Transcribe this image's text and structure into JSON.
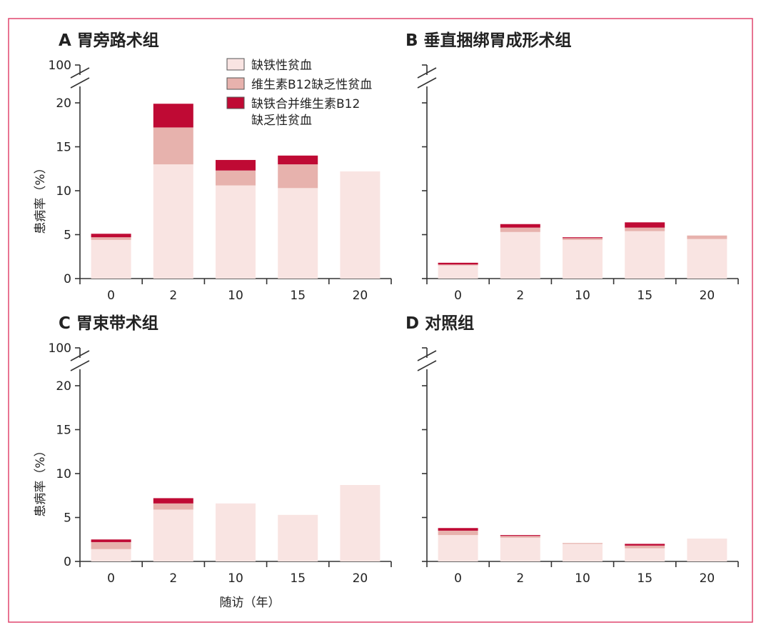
{
  "xlabel": "随访（年）",
  "legend": [
    {
      "label": "缺铁性贫血",
      "color": "#f9e4e2"
    },
    {
      "label": "维生素B12缺乏性贫血",
      "color": "#e7b2ad"
    },
    {
      "label": "缺铁合并维生素B12",
      "label2": "缺乏性贫血",
      "color": "#bf0a34"
    }
  ],
  "chart_data": [
    {
      "type": "bar",
      "stacked": true,
      "panel": "A",
      "title": "胃旁路术组",
      "ylabel": "患病率（%）",
      "categories": [
        "0",
        "2",
        "10",
        "15",
        "20"
      ],
      "yticks": [
        "0",
        "5",
        "10",
        "15",
        "20",
        "100"
      ],
      "y_axis_break": [
        20,
        100
      ],
      "series": [
        {
          "name": "缺铁性贫血",
          "values": [
            4.4,
            13.0,
            10.6,
            10.3,
            12.2
          ]
        },
        {
          "name": "维生素B12缺乏性贫血",
          "values": [
            0.3,
            4.2,
            1.7,
            2.7,
            0
          ]
        },
        {
          "name": "缺铁合并维生素B12缺乏性贫血",
          "values": [
            0.4,
            2.7,
            1.2,
            1.0,
            0
          ]
        }
      ]
    },
    {
      "type": "bar",
      "stacked": true,
      "panel": "B",
      "title": "垂直捆绑胃成形术组",
      "ylabel": "",
      "categories": [
        "0",
        "2",
        "10",
        "15",
        "20"
      ],
      "yticks": [],
      "y_axis_break": [
        20,
        100
      ],
      "series": [
        {
          "name": "缺铁性贫血",
          "values": [
            1.5,
            5.3,
            4.4,
            5.4,
            4.5
          ]
        },
        {
          "name": "维生素B12缺乏性贫血",
          "values": [
            0.1,
            0.5,
            0.2,
            0.4,
            0.4
          ]
        },
        {
          "name": "缺铁合并维生素B12缺乏性贫血",
          "values": [
            0.2,
            0.4,
            0.1,
            0.6,
            0
          ]
        }
      ]
    },
    {
      "type": "bar",
      "stacked": true,
      "panel": "C",
      "title": "胃束带术组",
      "ylabel": "患病率（%）",
      "categories": [
        "0",
        "2",
        "10",
        "15",
        "20"
      ],
      "yticks": [
        "0",
        "5",
        "10",
        "15",
        "20",
        "100"
      ],
      "y_axis_break": [
        20,
        100
      ],
      "series": [
        {
          "name": "缺铁性贫血",
          "values": [
            1.4,
            5.9,
            6.6,
            5.3,
            8.7
          ]
        },
        {
          "name": "维生素B12缺乏性贫血",
          "values": [
            0.8,
            0.7,
            0,
            0,
            0
          ]
        },
        {
          "name": "缺铁合并维生素B12缺乏性贫血",
          "values": [
            0.3,
            0.6,
            0,
            0,
            0
          ]
        }
      ]
    },
    {
      "type": "bar",
      "stacked": true,
      "panel": "D",
      "title": "对照组",
      "ylabel": "",
      "categories": [
        "0",
        "2",
        "10",
        "15",
        "20"
      ],
      "yticks": [],
      "y_axis_break": [
        20,
        100
      ],
      "series": [
        {
          "name": "缺铁性贫血",
          "values": [
            3.0,
            2.7,
            2.0,
            1.5,
            2.6
          ]
        },
        {
          "name": "维生素B12缺乏性贫血",
          "values": [
            0.5,
            0.2,
            0.1,
            0.3,
            0
          ]
        },
        {
          "name": "缺铁合并维生素B12缺乏性贫血",
          "values": [
            0.3,
            0.1,
            0,
            0.2,
            0
          ]
        }
      ]
    }
  ]
}
